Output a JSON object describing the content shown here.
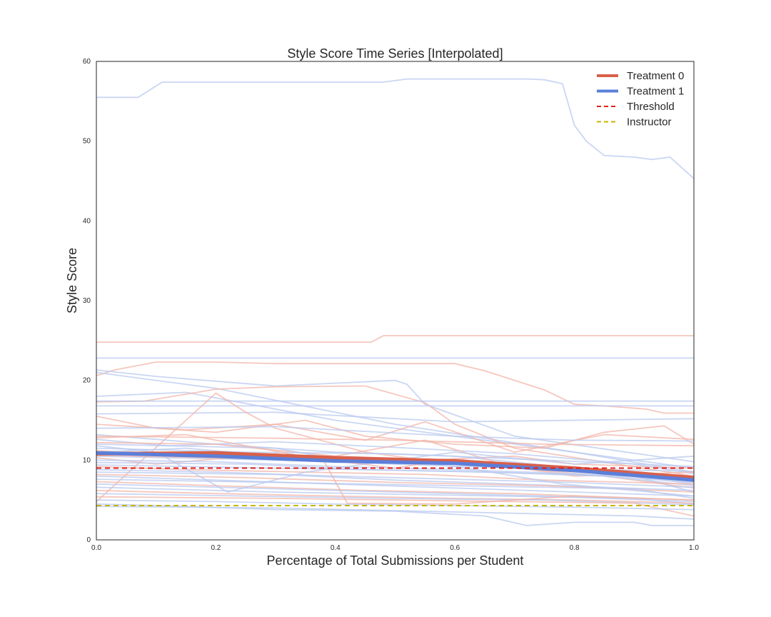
{
  "chart_data": {
    "type": "line",
    "title": "Style Score Time Series [Interpolated]",
    "xlabel": "Percentage of Total Submissions per Student",
    "ylabel": "Style Score",
    "xlim": [
      0.0,
      1.0
    ],
    "ylim": [
      0,
      60
    ],
    "xticks": [
      "0.0",
      "0.2",
      "0.4",
      "0.6",
      "0.8",
      "1.0"
    ],
    "yticks": [
      "0",
      "10",
      "20",
      "30",
      "40",
      "50",
      "60"
    ],
    "grid": false,
    "legend_position": "top-right",
    "colors": {
      "treatment0": "#d9604a",
      "treatment1": "#5b7fd9",
      "treatment0_light": "#f1b4a8",
      "treatment1_light": "#b8c8ef",
      "threshold": "#e0201c",
      "instructor": "#c8b400"
    },
    "legend": [
      {
        "label": "Treatment 0",
        "style": "solid-thick",
        "color": "#d9604a"
      },
      {
        "label": "Treatment 1",
        "style": "solid-thick",
        "color": "#5b7fd9"
      },
      {
        "label": "Threshold",
        "style": "dashed",
        "color": "#e0201c"
      },
      {
        "label": "Instructor",
        "style": "dashed",
        "color": "#c8b400"
      }
    ],
    "series": [
      {
        "name": "Treatment 0",
        "kind": "mean",
        "x": [
          0.0,
          0.2,
          0.4,
          0.6,
          0.8,
          1.0
        ],
        "y": [
          10.8,
          10.9,
          10.3,
          9.9,
          9.0,
          7.8
        ]
      },
      {
        "name": "Treatment 1",
        "kind": "mean",
        "x": [
          0.0,
          0.2,
          0.4,
          0.6,
          0.8,
          1.0
        ],
        "y": [
          10.9,
          10.5,
          9.9,
          9.6,
          8.7,
          7.5
        ]
      },
      {
        "name": "Threshold",
        "kind": "hline",
        "x": [
          0.0,
          1.0
        ],
        "y": [
          9.0,
          9.0
        ]
      },
      {
        "name": "Instructor",
        "kind": "hline",
        "x": [
          0.0,
          1.0
        ],
        "y": [
          4.3,
          4.3
        ]
      }
    ],
    "students": [
      {
        "group": 1,
        "x": [
          0.0,
          0.07,
          0.11,
          0.3,
          0.48,
          0.52,
          0.72,
          0.75,
          0.78,
          0.8,
          0.82,
          0.85,
          0.9,
          0.93,
          0.96,
          1.0
        ],
        "y": [
          55.5,
          55.5,
          57.4,
          57.4,
          57.4,
          57.8,
          57.8,
          57.7,
          57.2,
          52.0,
          50.0,
          48.2,
          48.0,
          47.7,
          48.0,
          45.3
        ]
      },
      {
        "group": 0,
        "x": [
          0.0,
          0.46,
          0.48,
          1.0
        ],
        "y": [
          24.8,
          24.8,
          25.6,
          25.6
        ]
      },
      {
        "group": 1,
        "x": [
          0.0,
          1.0
        ],
        "y": [
          22.8,
          22.8
        ]
      },
      {
        "group": 0,
        "x": [
          0.0,
          0.03,
          0.1,
          0.2,
          0.3,
          0.4,
          0.6,
          0.65,
          0.75,
          0.8,
          0.85,
          0.92,
          0.95,
          1.0
        ],
        "y": [
          20.6,
          21.3,
          22.3,
          22.3,
          22.1,
          22.1,
          22.1,
          21.2,
          18.8,
          17.0,
          16.8,
          16.4,
          15.9,
          15.9
        ]
      },
      {
        "group": 1,
        "x": [
          0.0,
          0.1,
          0.3,
          0.5,
          0.52,
          0.55,
          0.7,
          1.0
        ],
        "y": [
          21.3,
          20.5,
          19.3,
          20.0,
          19.5,
          17.0,
          13.0,
          9.8
        ]
      },
      {
        "group": 1,
        "x": [
          0.0,
          0.2,
          0.5,
          0.8,
          1.0
        ],
        "y": [
          21.0,
          19.0,
          14.5,
          11.0,
          8.5
        ]
      },
      {
        "group": 1,
        "x": [
          0.0,
          0.15,
          0.4,
          0.7,
          1.0
        ],
        "y": [
          18.0,
          18.5,
          15.0,
          12.0,
          9.0
        ]
      },
      {
        "group": 0,
        "x": [
          0.0,
          0.08,
          0.2,
          0.3,
          0.45,
          0.55,
          0.6,
          0.7,
          1.0
        ],
        "y": [
          17.3,
          17.4,
          18.9,
          19.2,
          19.3,
          17.2,
          14.5,
          11.5,
          8.0
        ]
      },
      {
        "group": 1,
        "x": [
          0.0,
          1.0
        ],
        "y": [
          17.4,
          17.4
        ]
      },
      {
        "group": 1,
        "x": [
          0.0,
          1.0
        ],
        "y": [
          16.8,
          16.8
        ]
      },
      {
        "group": 1,
        "x": [
          0.0,
          0.3,
          0.6,
          1.0
        ],
        "y": [
          15.8,
          16.0,
          14.8,
          15.2
        ]
      },
      {
        "group": 0,
        "x": [
          0.0,
          0.1,
          0.2,
          0.35,
          0.45,
          0.6,
          0.75,
          0.85,
          0.95,
          1.0
        ],
        "y": [
          15.5,
          14.0,
          13.5,
          15.0,
          13.0,
          12.0,
          11.5,
          13.5,
          14.3,
          12.0
        ]
      },
      {
        "group": 0,
        "x": [
          0.0,
          0.2,
          0.25,
          0.3,
          0.45,
          0.55,
          0.7,
          0.8,
          1.0
        ],
        "y": [
          4.8,
          18.4,
          16.0,
          14.0,
          11.0,
          10.0,
          10.5,
          9.5,
          9.0
        ]
      },
      {
        "group": 0,
        "x": [
          0.0,
          0.15,
          0.3,
          0.45,
          0.55,
          0.7,
          0.85,
          1.0
        ],
        "y": [
          14.5,
          13.8,
          14.5,
          12.5,
          14.8,
          11.0,
          13.2,
          12.6
        ]
      },
      {
        "group": 1,
        "x": [
          0.0,
          0.3,
          0.6,
          0.8,
          1.0
        ],
        "y": [
          14.0,
          14.2,
          13.0,
          12.5,
          12.4
        ]
      },
      {
        "group": 1,
        "x": [
          0.0,
          0.2,
          0.4,
          0.6,
          0.8,
          1.0
        ],
        "y": [
          13.2,
          12.0,
          11.0,
          10.5,
          9.0,
          7.0
        ]
      },
      {
        "group": 0,
        "x": [
          0.0,
          0.25,
          0.5,
          0.75,
          1.0
        ],
        "y": [
          13.0,
          12.8,
          12.5,
          12.0,
          11.8
        ]
      },
      {
        "group": 1,
        "x": [
          0.0,
          0.12,
          0.3,
          0.5,
          0.7,
          0.9,
          1.0
        ],
        "y": [
          12.6,
          11.8,
          12.3,
          11.6,
          10.8,
          9.5,
          8.3
        ]
      },
      {
        "group": 0,
        "x": [
          0.0,
          0.2,
          0.4,
          0.55,
          0.7,
          0.85,
          1.0
        ],
        "y": [
          12.2,
          12.0,
          10.5,
          12.5,
          9.0,
          8.0,
          6.5
        ]
      },
      {
        "group": 1,
        "x": [
          0.0,
          0.3,
          0.45,
          0.6,
          0.8,
          1.0
        ],
        "y": [
          12.0,
          11.5,
          9.5,
          11.0,
          9.5,
          10.5
        ]
      },
      {
        "group": 1,
        "x": [
          0.0,
          0.25,
          0.5,
          0.75,
          1.0
        ],
        "y": [
          11.5,
          11.0,
          10.8,
          10.0,
          9.2
        ]
      },
      {
        "group": 0,
        "x": [
          0.0,
          0.2,
          0.4,
          0.6,
          0.8,
          1.0
        ],
        "y": [
          11.2,
          10.5,
          10.0,
          9.6,
          8.8,
          7.9
        ]
      },
      {
        "group": 1,
        "x": [
          0.0,
          0.15,
          0.35,
          0.55,
          0.75,
          1.0
        ],
        "y": [
          11.0,
          11.5,
          10.2,
          9.8,
          9.0,
          8.0
        ]
      },
      {
        "group": 1,
        "x": [
          0.0,
          0.3,
          0.5,
          0.7,
          1.0
        ],
        "y": [
          10.5,
          10.0,
          9.5,
          9.0,
          8.6
        ]
      },
      {
        "group": 0,
        "x": [
          0.0,
          0.1,
          0.3,
          0.5,
          0.6,
          0.8,
          1.0
        ],
        "y": [
          10.3,
          9.5,
          10.8,
          9.0,
          10.2,
          8.0,
          8.5
        ]
      },
      {
        "group": 1,
        "x": [
          0.0,
          0.2,
          0.4,
          0.6,
          0.8,
          1.0
        ],
        "y": [
          10.0,
          9.8,
          9.2,
          8.8,
          8.3,
          7.2
        ]
      },
      {
        "group": 1,
        "x": [
          0.0,
          0.25,
          0.45,
          0.65,
          0.85,
          1.0
        ],
        "y": [
          9.7,
          9.5,
          8.8,
          8.5,
          8.0,
          6.8
        ]
      },
      {
        "group": 1,
        "x": [
          0.0,
          0.3,
          0.6,
          0.9,
          1.0
        ],
        "y": [
          9.4,
          9.0,
          8.6,
          8.0,
          6.0
        ]
      },
      {
        "group": 0,
        "x": [
          0.0,
          0.15,
          0.35,
          0.55,
          0.75,
          1.0
        ],
        "y": [
          9.2,
          8.8,
          8.5,
          8.2,
          7.5,
          7.0
        ]
      },
      {
        "group": 1,
        "x": [
          0.0,
          0.2,
          0.4,
          0.6,
          0.8,
          1.0
        ],
        "y": [
          8.8,
          8.5,
          8.0,
          7.6,
          7.2,
          6.6
        ]
      },
      {
        "group": 1,
        "x": [
          0.0,
          0.3,
          0.5,
          0.7,
          1.0
        ],
        "y": [
          8.5,
          8.2,
          7.5,
          7.0,
          6.2
        ]
      },
      {
        "group": 0,
        "x": [
          0.0,
          0.25,
          0.5,
          0.75,
          1.0
        ],
        "y": [
          8.2,
          7.8,
          7.2,
          6.8,
          6.0
        ]
      },
      {
        "group": 1,
        "x": [
          0.0,
          0.2,
          0.4,
          0.6,
          0.8,
          1.0
        ],
        "y": [
          8.0,
          7.5,
          7.0,
          6.5,
          6.0,
          5.5
        ]
      },
      {
        "group": 1,
        "x": [
          0.0,
          0.3,
          0.6,
          0.9,
          1.0
        ],
        "y": [
          7.6,
          7.2,
          6.8,
          6.4,
          5.2
        ]
      },
      {
        "group": 0,
        "x": [
          0.0,
          0.2,
          0.45,
          0.7,
          1.0
        ],
        "y": [
          7.3,
          6.8,
          6.2,
          5.8,
          5.0
        ]
      },
      {
        "group": 1,
        "x": [
          0.0,
          0.25,
          0.5,
          0.75,
          1.0
        ],
        "y": [
          7.0,
          6.5,
          6.0,
          5.5,
          4.8
        ]
      },
      {
        "group": 1,
        "x": [
          0.0,
          0.3,
          0.6,
          0.9,
          1.0
        ],
        "y": [
          6.6,
          6.0,
          5.6,
          5.2,
          4.5
        ]
      },
      {
        "group": 0,
        "x": [
          0.0,
          0.2,
          0.4,
          0.6,
          0.8,
          1.0
        ],
        "y": [
          6.2,
          5.8,
          5.5,
          5.2,
          5.0,
          4.6
        ]
      },
      {
        "group": 1,
        "x": [
          0.0,
          0.25,
          0.5,
          0.75,
          1.0
        ],
        "y": [
          5.8,
          5.5,
          5.2,
          5.0,
          4.4
        ]
      },
      {
        "group": 0,
        "x": [
          0.0,
          0.3,
          0.6,
          0.9,
          1.0
        ],
        "y": [
          5.4,
          5.2,
          4.9,
          4.6,
          3.0
        ]
      },
      {
        "group": 1,
        "x": [
          0.0,
          0.2,
          0.4,
          0.6,
          0.8,
          1.0
        ],
        "y": [
          5.0,
          4.8,
          4.5,
          4.3,
          4.1,
          3.8
        ]
      },
      {
        "group": 1,
        "x": [
          0.0,
          0.15,
          0.3,
          0.5,
          0.65,
          0.72,
          0.8,
          0.9,
          0.93,
          1.0
        ],
        "y": [
          4.5,
          4.2,
          3.8,
          3.6,
          3.0,
          1.8,
          2.2,
          2.2,
          1.8,
          1.8
        ]
      },
      {
        "group": 1,
        "x": [
          0.0,
          0.3,
          0.6,
          0.9,
          1.0
        ],
        "y": [
          4.2,
          4.0,
          3.5,
          3.0,
          2.6
        ]
      },
      {
        "group": 0,
        "x": [
          0.0,
          0.25,
          0.5,
          0.75,
          1.0
        ],
        "y": [
          10.6,
          10.2,
          9.9,
          9.2,
          8.0
        ]
      },
      {
        "group": 1,
        "x": [
          0.0,
          0.1,
          0.22,
          0.35,
          0.5,
          0.62,
          0.78,
          1.0
        ],
        "y": [
          11.8,
          11.0,
          6.0,
          8.5,
          10.0,
          9.0,
          7.0,
          5.5
        ]
      },
      {
        "group": 0,
        "x": [
          0.0,
          0.15,
          0.38,
          0.42,
          0.6,
          0.8,
          1.0
        ],
        "y": [
          12.8,
          13.2,
          10.0,
          4.6,
          4.5,
          5.5,
          5.0
        ]
      }
    ]
  }
}
